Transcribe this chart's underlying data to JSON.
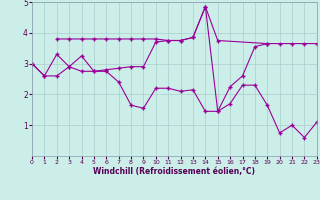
{
  "xlabel": "Windchill (Refroidissement éolien,°C)",
  "bg_color": "#cceee8",
  "line_color": "#990099",
  "grid_color": "#aacccc",
  "xlim": [
    0,
    23
  ],
  "ylim": [
    0,
    5
  ],
  "xticks": [
    0,
    1,
    2,
    3,
    4,
    5,
    6,
    7,
    8,
    9,
    10,
    11,
    12,
    13,
    14,
    15,
    16,
    17,
    18,
    19,
    20,
    21,
    22,
    23
  ],
  "yticks": [
    1,
    2,
    3,
    4,
    5
  ],
  "series1": {
    "x": [
      2,
      3,
      4,
      5,
      6,
      7,
      8,
      9,
      10,
      11,
      12,
      13,
      14,
      15,
      19
    ],
    "y": [
      3.8,
      3.8,
      3.8,
      3.8,
      3.8,
      3.8,
      3.8,
      3.8,
      3.8,
      3.75,
      3.75,
      3.85,
      4.85,
      3.75,
      3.65
    ]
  },
  "series2": {
    "x": [
      0,
      1,
      2,
      3,
      4,
      5,
      6,
      7,
      8,
      9,
      10,
      11,
      12,
      13,
      14,
      15,
      16,
      17,
      18,
      19,
      20,
      21,
      22,
      23
    ],
    "y": [
      3.0,
      2.6,
      3.3,
      2.9,
      3.25,
      2.75,
      2.8,
      2.85,
      2.9,
      2.9,
      3.7,
      3.75,
      3.75,
      3.85,
      4.85,
      1.45,
      2.25,
      2.6,
      3.55,
      3.65,
      3.65,
      3.65,
      3.65,
      3.65
    ]
  },
  "series3": {
    "x": [
      0,
      1,
      2,
      3,
      4,
      5,
      6,
      7,
      8,
      9,
      10,
      11,
      12,
      13,
      14,
      15,
      16,
      17,
      18,
      19,
      20,
      21,
      22,
      23
    ],
    "y": [
      3.0,
      2.6,
      2.6,
      2.9,
      2.75,
      2.75,
      2.75,
      2.4,
      1.65,
      1.55,
      2.2,
      2.2,
      2.1,
      2.15,
      1.45,
      1.45,
      1.7,
      2.3,
      2.3,
      1.65,
      0.75,
      1.0,
      0.6,
      1.1
    ]
  }
}
